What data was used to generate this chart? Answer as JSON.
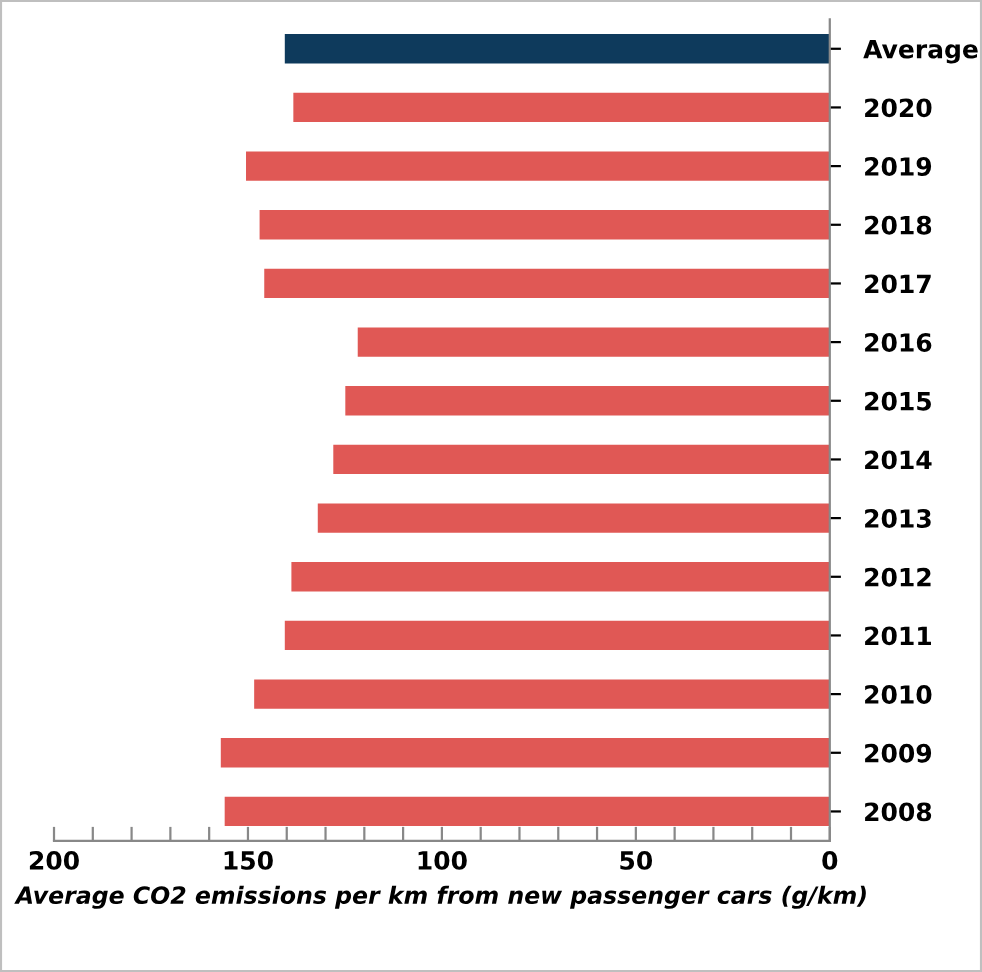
{
  "chart_data": {
    "type": "bar",
    "orientation": "horizontal",
    "xlabel": "Average CO2 emissions per km from new passenger cars (g/km)",
    "categories": [
      "Average",
      "2020",
      "2019",
      "2018",
      "2017",
      "2016",
      "2015",
      "2014",
      "2013",
      "2012",
      "2011",
      "2010",
      "2009",
      "2008"
    ],
    "values": [
      140.5,
      138.3,
      150.5,
      147.0,
      145.8,
      121.7,
      124.9,
      128.0,
      132.0,
      138.8,
      140.5,
      148.4,
      157.0,
      156.0
    ],
    "colors": [
      "#0e3a5c",
      "#e05855",
      "#e05855",
      "#e05855",
      "#e05855",
      "#e05855",
      "#e05855",
      "#e05855",
      "#e05855",
      "#e05855",
      "#e05855",
      "#e05855",
      "#e05855",
      "#e05855"
    ],
    "xlim": [
      200,
      0
    ],
    "xticks": [
      200,
      {
        "value": 190,
        "label": null
      },
      {
        "value": 180,
        "label": null
      },
      {
        "value": 170,
        "label": null
      },
      {
        "value": 160,
        "label": null
      },
      150,
      {
        "value": 140,
        "label": null
      },
      {
        "value": 130,
        "label": null
      },
      {
        "value": 120,
        "label": null
      },
      {
        "value": 110,
        "label": null
      },
      100,
      {
        "value": 90,
        "label": null
      },
      {
        "value": 80,
        "label": null
      },
      {
        "value": 70,
        "label": null
      },
      {
        "value": 60,
        "label": null
      },
      50,
      {
        "value": 40,
        "label": null
      },
      {
        "value": 30,
        "label": null
      },
      {
        "value": 20,
        "label": null
      },
      {
        "value": 10,
        "label": null
      },
      0
    ],
    "grid": false,
    "legend": false
  }
}
